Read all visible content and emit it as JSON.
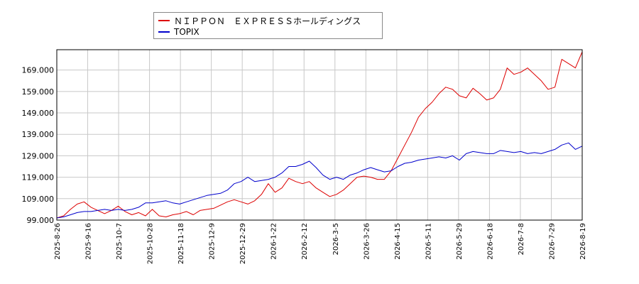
{
  "chart_data": {
    "type": "line",
    "title": "",
    "xlabel": "",
    "ylabel": "",
    "ylim": [
      99.0,
      178.5
    ],
    "yticks": [
      "99.000",
      "109.000",
      "119.000",
      "129.000",
      "139.000",
      "149.000",
      "159.000",
      "169.000"
    ],
    "ytick_values": [
      99,
      109,
      119,
      129,
      139,
      149,
      159,
      169
    ],
    "xticks": [
      "2025-8-26",
      "2025-9-16",
      "2025-10-7",
      "2025-10-28",
      "2025-11-18",
      "2025-12-9",
      "2025-12-29",
      "2026-1-22",
      "2026-2-12",
      "2026-3-5",
      "2026-3-26",
      "2026-4-15",
      "2026-5-11",
      "2026-5-29",
      "2026-6-18",
      "2026-7-8",
      "2026-7-29",
      "2026-8-19"
    ],
    "grid": true,
    "legend_position": "top-left",
    "series": [
      {
        "name": "ＮＩＰＰＯＮ　ＥＸＰＲＥＳＳホールディングス",
        "color": "#dd0000",
        "values": [
          [
            0,
            100
          ],
          [
            1,
            101
          ],
          [
            2,
            104
          ],
          [
            3,
            106.5
          ],
          [
            4,
            107.5
          ],
          [
            5,
            105
          ],
          [
            6,
            103.5
          ],
          [
            7,
            102
          ],
          [
            8,
            103.5
          ],
          [
            9,
            105.5
          ],
          [
            10,
            103
          ],
          [
            11,
            101.5
          ],
          [
            12,
            102.5
          ],
          [
            13,
            101
          ],
          [
            14,
            104
          ],
          [
            15,
            101
          ],
          [
            16,
            100.5
          ],
          [
            17,
            101.5
          ],
          [
            18,
            102
          ],
          [
            19,
            103
          ],
          [
            20,
            101.5
          ],
          [
            21,
            103.5
          ],
          [
            22,
            104
          ],
          [
            23,
            104.5
          ],
          [
            24,
            106
          ],
          [
            25,
            107.5
          ],
          [
            26,
            108.5
          ],
          [
            27,
            107.5
          ],
          [
            28,
            106.5
          ],
          [
            29,
            108
          ],
          [
            30,
            111
          ],
          [
            31,
            116
          ],
          [
            32,
            112
          ],
          [
            33,
            114
          ],
          [
            34,
            118.5
          ],
          [
            35,
            117
          ],
          [
            36,
            116
          ],
          [
            37,
            117
          ],
          [
            38,
            114
          ],
          [
            39,
            112
          ],
          [
            40,
            110
          ],
          [
            41,
            111
          ],
          [
            42,
            113
          ],
          [
            43,
            116
          ],
          [
            44,
            119
          ],
          [
            45,
            119.5
          ],
          [
            46,
            119
          ],
          [
            47,
            118
          ],
          [
            48,
            118
          ],
          [
            49,
            122
          ],
          [
            50,
            128
          ],
          [
            51,
            134
          ],
          [
            52,
            140
          ],
          [
            53,
            147
          ],
          [
            54,
            151
          ],
          [
            55,
            154
          ],
          [
            56,
            158
          ],
          [
            57,
            161
          ],
          [
            58,
            160
          ],
          [
            59,
            157
          ],
          [
            60,
            156
          ],
          [
            61,
            160.5
          ],
          [
            62,
            158
          ],
          [
            63,
            155
          ],
          [
            64,
            156
          ],
          [
            65,
            160
          ],
          [
            66,
            170
          ],
          [
            67,
            167
          ],
          [
            68,
            168
          ],
          [
            69,
            170
          ],
          [
            70,
            167
          ],
          [
            71,
            164
          ],
          [
            72,
            160
          ],
          [
            73,
            161
          ],
          [
            74,
            174
          ],
          [
            75,
            172
          ],
          [
            76,
            170
          ],
          [
            77,
            177.5
          ]
        ]
      },
      {
        "name": "TOPIX",
        "color": "#0000cc",
        "values": [
          [
            0,
            100
          ],
          [
            1,
            100.5
          ],
          [
            2,
            101.5
          ],
          [
            3,
            102.5
          ],
          [
            4,
            103
          ],
          [
            5,
            103
          ],
          [
            6,
            103.5
          ],
          [
            7,
            104
          ],
          [
            8,
            103.5
          ],
          [
            9,
            104
          ],
          [
            10,
            103.5
          ],
          [
            11,
            104
          ],
          [
            12,
            105
          ],
          [
            13,
            107
          ],
          [
            14,
            107
          ],
          [
            15,
            107.5
          ],
          [
            16,
            108
          ],
          [
            17,
            107
          ],
          [
            18,
            106.5
          ],
          [
            19,
            107.5
          ],
          [
            20,
            108.5
          ],
          [
            21,
            109.5
          ],
          [
            22,
            110.5
          ],
          [
            23,
            111
          ],
          [
            24,
            111.5
          ],
          [
            25,
            113
          ],
          [
            26,
            116
          ],
          [
            27,
            117
          ],
          [
            28,
            119
          ],
          [
            29,
            117
          ],
          [
            30,
            117.5
          ],
          [
            31,
            118
          ],
          [
            32,
            119
          ],
          [
            33,
            121
          ],
          [
            34,
            124
          ],
          [
            35,
            124
          ],
          [
            36,
            125
          ],
          [
            37,
            126.5
          ],
          [
            38,
            123.5
          ],
          [
            39,
            120
          ],
          [
            40,
            118
          ],
          [
            41,
            119
          ],
          [
            42,
            118
          ],
          [
            43,
            120
          ],
          [
            44,
            121
          ],
          [
            45,
            122.5
          ],
          [
            46,
            123.5
          ],
          [
            47,
            122.5
          ],
          [
            48,
            121.5
          ],
          [
            49,
            122
          ],
          [
            50,
            124
          ],
          [
            51,
            125.5
          ],
          [
            52,
            126
          ],
          [
            53,
            127
          ],
          [
            54,
            127.5
          ],
          [
            55,
            128
          ],
          [
            56,
            128.5
          ],
          [
            57,
            128
          ],
          [
            58,
            129
          ],
          [
            59,
            127
          ],
          [
            60,
            130
          ],
          [
            61,
            131
          ],
          [
            62,
            130.5
          ],
          [
            63,
            130
          ],
          [
            64,
            130
          ],
          [
            65,
            131.5
          ],
          [
            66,
            131
          ],
          [
            67,
            130.5
          ],
          [
            68,
            131
          ],
          [
            69,
            130
          ],
          [
            70,
            130.5
          ],
          [
            71,
            130
          ],
          [
            72,
            131
          ],
          [
            73,
            132
          ],
          [
            74,
            134
          ],
          [
            75,
            135
          ],
          [
            76,
            132
          ],
          [
            77,
            133.5
          ]
        ]
      }
    ]
  }
}
